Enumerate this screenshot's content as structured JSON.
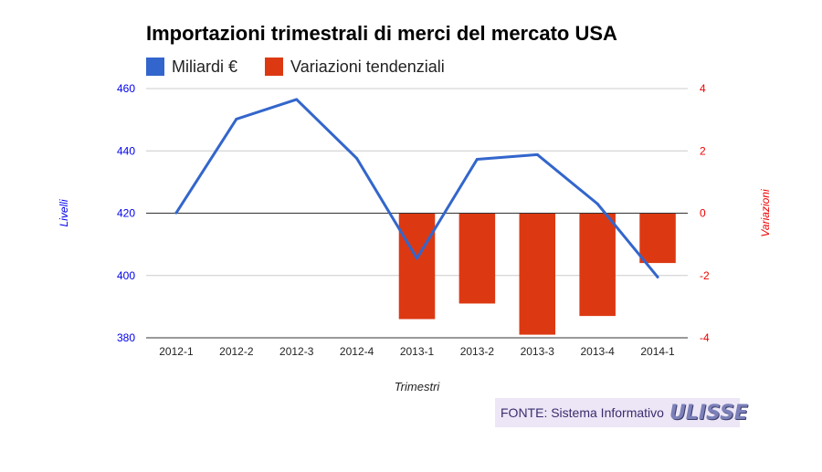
{
  "colors": {
    "line": "#3366cc",
    "bars": "#dc3912",
    "left_axis": "#0000ee",
    "right_axis": "#ee0000",
    "grid": "#cccccc",
    "zero_line": "#333333"
  },
  "chart_data": {
    "type": "bar",
    "title": "Importazioni trimestrali di merci del mercato USA",
    "xlabel": "Trimestri",
    "ylabel_left": "Livelli",
    "ylabel_right": "Variazioni",
    "categories": [
      "2012-1",
      "2012-2",
      "2012-3",
      "2012-4",
      "2013-1",
      "2013-2",
      "2013-3",
      "2013-4",
      "2014-1"
    ],
    "series": [
      {
        "name": "Miliardi €",
        "type": "line",
        "axis": "left",
        "values": [
          420.1,
          450.2,
          456.5,
          437.6,
          405.5,
          437.3,
          438.8,
          423,
          399.5
        ]
      },
      {
        "name": "Variazioni tendenziali",
        "type": "bar",
        "axis": "right",
        "values": [
          null,
          null,
          null,
          null,
          -3.4,
          -2.9,
          -3.9,
          -3.3,
          -1.6
        ]
      }
    ],
    "ylim_left": [
      380,
      460
    ],
    "yticks_left": [
      "380",
      "400",
      "420",
      "440",
      "460"
    ],
    "ylim_right": [
      -4,
      4
    ],
    "yticks_right": [
      "-4",
      "-2",
      "0",
      "2",
      "4"
    ],
    "grid": true,
    "legend_position": "top-left"
  },
  "source": {
    "text": "FONTE: Sistema Informativo",
    "logo_text": "ULISSE"
  }
}
